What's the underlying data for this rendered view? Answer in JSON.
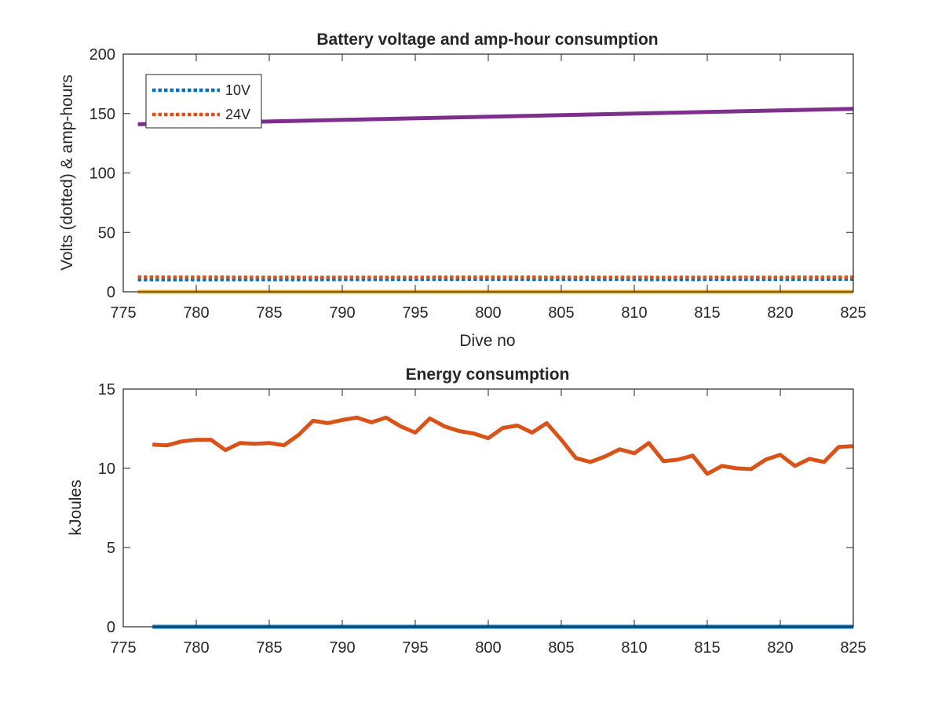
{
  "chart_data": [
    {
      "type": "line",
      "title": "Battery voltage and amp-hour consumption",
      "xlabel": "Dive no",
      "ylabel": "Volts (dotted) & amp-hours",
      "xlim": [
        775,
        825
      ],
      "ylim": [
        0,
        200
      ],
      "xticks": [
        "775",
        "780",
        "785",
        "790",
        "795",
        "800",
        "805",
        "810",
        "815",
        "820",
        "825"
      ],
      "yticks": [
        "0",
        "50",
        "100",
        "150",
        "200"
      ],
      "legend_position": "top-left",
      "x_start": 776,
      "x_end": 825,
      "series": [
        {
          "name": "10V",
          "style": "dotted",
          "color": "#0072BD",
          "x": [
            776,
            788,
            800,
            812,
            825
          ],
          "values": [
            10.3,
            10.4,
            10.6,
            10.5,
            10.6
          ]
        },
        {
          "name": "24V",
          "style": "dotted",
          "color": "#D95319",
          "x": [
            776,
            788,
            800,
            812,
            825
          ],
          "values": [
            12.3,
            12.1,
            12.2,
            12.1,
            12.2
          ]
        },
        {
          "style": "solid",
          "color": "#7E2F8E",
          "x": [
            776,
            825
          ],
          "values": [
            141,
            154
          ]
        },
        {
          "style": "solid",
          "color": "#EDB120",
          "x": [
            776,
            825
          ],
          "values": [
            0,
            0
          ]
        }
      ]
    },
    {
      "type": "line",
      "title": "Energy consumption",
      "xlabel": "",
      "ylabel": "kJoules",
      "xlim": [
        775,
        825
      ],
      "ylim": [
        0,
        15
      ],
      "xticks": [
        "775",
        "780",
        "785",
        "790",
        "795",
        "800",
        "805",
        "810",
        "815",
        "820",
        "825"
      ],
      "yticks": [
        "0",
        "5",
        "10",
        "15"
      ],
      "series": [
        {
          "style": "solid",
          "color": "#0072BD",
          "x": [
            777,
            825
          ],
          "values": [
            0,
            0
          ]
        },
        {
          "style": "solid",
          "color": "#D95319",
          "x": [
            777,
            778,
            779,
            780,
            781,
            782,
            783,
            784,
            785,
            786,
            787,
            788,
            789,
            790,
            791,
            792,
            793,
            794,
            795,
            796,
            797,
            798,
            799,
            800,
            801,
            802,
            803,
            804,
            805,
            806,
            807,
            808,
            809,
            810,
            811,
            812,
            813,
            814,
            815,
            816,
            817,
            818,
            819,
            820,
            821,
            822,
            823,
            824,
            825
          ],
          "values": [
            11.5,
            11.45,
            11.7,
            11.8,
            11.8,
            11.15,
            11.6,
            11.55,
            11.6,
            11.45,
            12.1,
            13.0,
            12.85,
            13.05,
            13.2,
            12.9,
            13.2,
            12.65,
            12.25,
            13.15,
            12.65,
            12.35,
            12.2,
            11.9,
            12.55,
            12.7,
            12.25,
            12.85,
            11.8,
            10.65,
            10.4,
            10.75,
            11.2,
            10.95,
            11.6,
            10.45,
            10.55,
            10.8,
            9.65,
            10.15,
            10.0,
            9.95,
            10.55,
            10.85,
            10.15,
            10.6,
            10.4,
            11.35,
            11.4
          ]
        }
      ]
    }
  ]
}
